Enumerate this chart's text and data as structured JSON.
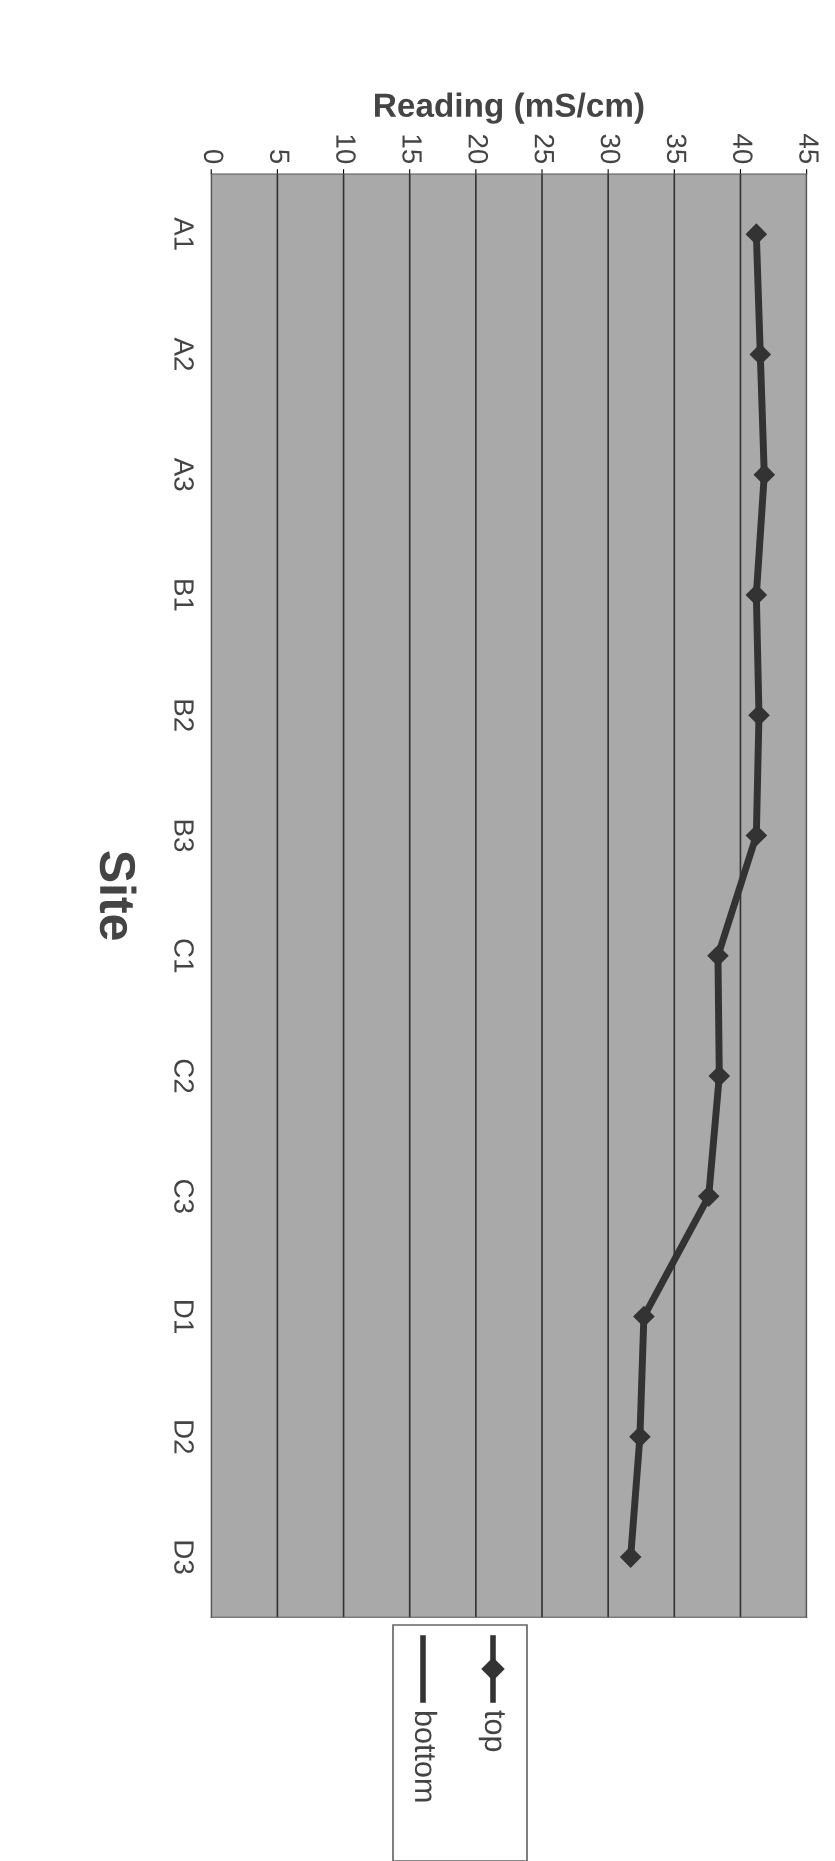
{
  "chart_data": {
    "type": "line",
    "orientation": "horizontal",
    "xlabel": "Reading (mS/cm)",
    "ylabel": "Site",
    "categories": [
      "A1",
      "A2",
      "A3",
      "B1",
      "B2",
      "B3",
      "C1",
      "C2",
      "C3",
      "D1",
      "D2",
      "D3"
    ],
    "series": [
      {
        "name": "top",
        "color": "#333333",
        "marker": "diamond",
        "values": [
          41.2,
          41.5,
          41.8,
          41.2,
          41.4,
          41.2,
          38.3,
          38.4,
          37.6,
          32.7,
          32.4,
          31.7
        ]
      },
      {
        "name": "bottom",
        "color": "#333333",
        "marker": "none",
        "values": [
          null,
          null,
          null,
          null,
          null,
          null,
          null,
          null,
          null,
          null,
          null,
          null
        ]
      }
    ],
    "xlim": [
      0,
      45
    ],
    "xticks": [
      0,
      5,
      10,
      15,
      20,
      25,
      30,
      35,
      40,
      45
    ],
    "grid": "x",
    "legend": "bottom",
    "line_style": "solid"
  }
}
